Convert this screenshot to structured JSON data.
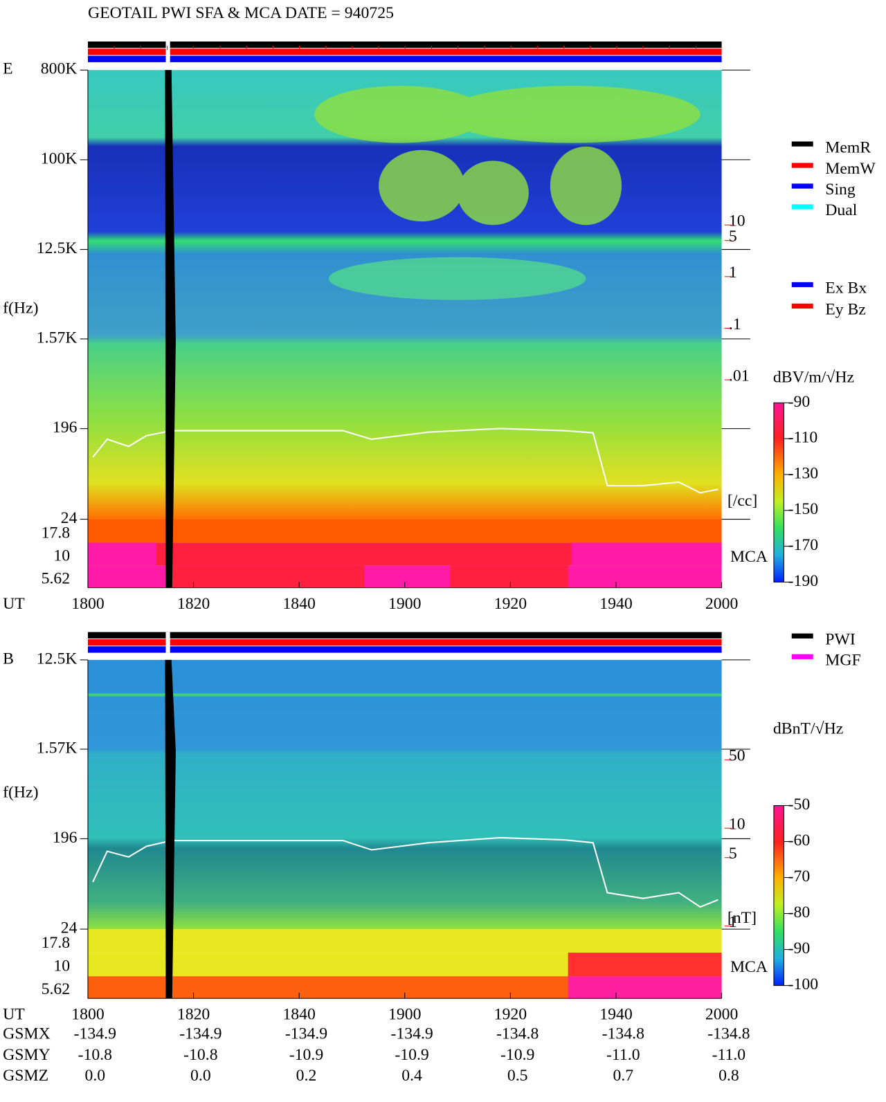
{
  "title": "GEOTAIL  PWI SFA & MCA   DATE = 940725",
  "chart_data": [
    {
      "type": "spectrogram",
      "panel_label": "E",
      "ylabel": "f(Hz)",
      "yscale": "log",
      "ylim": [
        24,
        800000
      ],
      "yticks": [
        {
          "value": 800000,
          "label": "800K"
        },
        {
          "value": 100000,
          "label": "100K"
        },
        {
          "value": 12500,
          "label": "12.5K"
        },
        {
          "value": 1570,
          "label": "1.57K"
        },
        196,
        24
      ],
      "mca_label": "MCA",
      "mca_channels": [
        "17.8",
        "10",
        "5.62"
      ],
      "xlabel": "UT",
      "xticks": [
        "1800",
        "1820",
        "1840",
        "1900",
        "1920",
        "1940",
        "2000"
      ],
      "legend": [
        {
          "name": "MemR",
          "color": "#000000"
        },
        {
          "name": "MemW",
          "color": "#ff0000"
        },
        {
          "name": "Sing",
          "color": "#0000ff"
        },
        {
          "name": "Dual",
          "color": "#00ffff"
        }
      ],
      "legend2": [
        {
          "name": "Ex Bx",
          "color": "#0000ff"
        },
        {
          "name": "Ey Bz",
          "color": "#ff0000"
        }
      ],
      "colorbar": {
        "label": "dBV/m/√Hz",
        "lim": [
          -190,
          -90
        ],
        "ticks": [
          -90,
          -110,
          -130,
          -150,
          -170,
          -190
        ]
      },
      "y2label": "[/cc]",
      "y2scale": "log",
      "y2lim": [
        2e-05,
        10000
      ],
      "y2ticks": [
        10,
        5,
        1,
        {
          "value": 0.1,
          "label": ".1"
        },
        {
          "value": 0.01,
          "label": ".01"
        }
      ]
    },
    {
      "type": "spectrogram",
      "panel_label": "B",
      "ylabel": "f(Hz)",
      "yscale": "log",
      "ylim": [
        24,
        12500
      ],
      "yticks": [
        {
          "value": 12500,
          "label": "12.5K"
        },
        {
          "value": 1570,
          "label": "1.57K"
        },
        196,
        24
      ],
      "mca_label": "MCA",
      "mca_channels": [
        "17.8",
        "10",
        "5.62"
      ],
      "xlabel": "UT",
      "xticks": [
        "1800",
        "1820",
        "1840",
        "1900",
        "1920",
        "1940",
        "2000"
      ],
      "legend": [
        {
          "name": "PWI",
          "color": "#000000"
        },
        {
          "name": "MGF",
          "color": "#ff00ff"
        }
      ],
      "colorbar": {
        "label": "dBnT/√Hz",
        "lim": [
          -100,
          -50
        ],
        "ticks": [
          -50,
          -60,
          -70,
          -80,
          -90,
          -100
        ]
      },
      "y2label": "[nT]",
      "y2scale": "log",
      "y2lim": [
        0.93,
        525
      ],
      "y2ticks": [
        50,
        10,
        5,
        1
      ]
    }
  ],
  "orbit": {
    "labels": [
      "GSMX",
      "GSMY",
      "GSMZ"
    ],
    "values": [
      [
        "-134.9",
        "-134.9",
        "-134.9",
        "-134.9",
        "-134.8",
        "-134.8",
        "-134.8"
      ],
      [
        "-10.8",
        "-10.8",
        "-10.9",
        "-10.9",
        "-10.9",
        "-11.0",
        "-11.0"
      ],
      [
        "0.0",
        "0.0",
        "0.2",
        "0.4",
        "0.5",
        "0.7",
        "0.8"
      ]
    ]
  }
}
